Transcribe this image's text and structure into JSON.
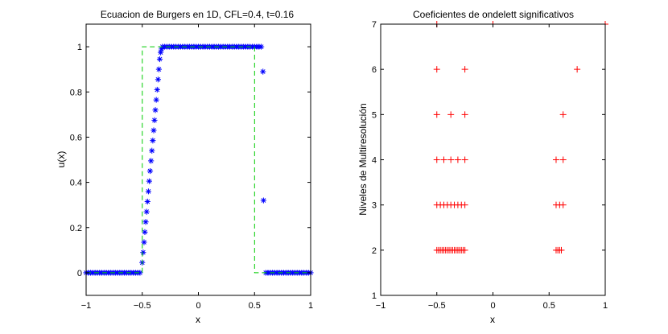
{
  "chart_data": [
    {
      "type": "scatter",
      "title": "Ecuacion de Burgers en 1D, CFL=0.4, t=0.16",
      "xlabel": "x",
      "ylabel": "u(x)",
      "xlim": [
        -1,
        1
      ],
      "ylim": [
        -0.1,
        1.1
      ],
      "xticks": [
        "−1",
        "−0.5",
        "0",
        "0.5",
        "1"
      ],
      "xtick_values": [
        -1,
        -0.5,
        0,
        0.5,
        1
      ],
      "yticks": [
        "0",
        "0.2",
        "0.4",
        "0.6",
        "0.8",
        "1"
      ],
      "ytick_values": [
        0,
        0.2,
        0.4,
        0.6,
        0.8,
        1
      ],
      "grid": false,
      "series": [
        {
          "marker": "asterisk",
          "color": "#0000ff",
          "points": [
            [
              -1.0,
              0
            ],
            [
              -0.98,
              0
            ],
            [
              -0.96,
              0
            ],
            [
              -0.94,
              0
            ],
            [
              -0.92,
              0
            ],
            [
              -0.9,
              0
            ],
            [
              -0.88,
              0
            ],
            [
              -0.86,
              0
            ],
            [
              -0.84,
              0
            ],
            [
              -0.82,
              0
            ],
            [
              -0.8,
              0
            ],
            [
              -0.78,
              0
            ],
            [
              -0.76,
              0
            ],
            [
              -0.74,
              0
            ],
            [
              -0.72,
              0
            ],
            [
              -0.7,
              0
            ],
            [
              -0.68,
              0
            ],
            [
              -0.66,
              0
            ],
            [
              -0.64,
              0
            ],
            [
              -0.62,
              0
            ],
            [
              -0.6,
              0
            ],
            [
              -0.58,
              0
            ],
            [
              -0.56,
              0
            ],
            [
              -0.54,
              0
            ],
            [
              -0.52,
              0
            ],
            [
              -0.5,
              0.045
            ],
            [
              -0.492,
              0.09
            ],
            [
              -0.484,
              0.135
            ],
            [
              -0.477,
              0.18
            ],
            [
              -0.469,
              0.225
            ],
            [
              -0.461,
              0.27
            ],
            [
              -0.453,
              0.315
            ],
            [
              -0.445,
              0.36
            ],
            [
              -0.438,
              0.405
            ],
            [
              -0.43,
              0.45
            ],
            [
              -0.422,
              0.495
            ],
            [
              -0.414,
              0.54
            ],
            [
              -0.406,
              0.585
            ],
            [
              -0.398,
              0.63
            ],
            [
              -0.391,
              0.675
            ],
            [
              -0.383,
              0.72
            ],
            [
              -0.375,
              0.765
            ],
            [
              -0.367,
              0.81
            ],
            [
              -0.359,
              0.855
            ],
            [
              -0.352,
              0.9
            ],
            [
              -0.344,
              0.945
            ],
            [
              -0.336,
              0.975
            ],
            [
              -0.328,
              0.99
            ],
            [
              -0.32,
              1.0
            ],
            [
              -0.3,
              1
            ],
            [
              -0.28,
              1
            ],
            [
              -0.26,
              1
            ],
            [
              -0.24,
              1
            ],
            [
              -0.22,
              1
            ],
            [
              -0.2,
              1
            ],
            [
              -0.18,
              1
            ],
            [
              -0.16,
              1
            ],
            [
              -0.14,
              1
            ],
            [
              -0.12,
              1
            ],
            [
              -0.1,
              1
            ],
            [
              -0.08,
              1
            ],
            [
              -0.06,
              1
            ],
            [
              -0.04,
              1
            ],
            [
              -0.02,
              1
            ],
            [
              0.0,
              1
            ],
            [
              0.02,
              1
            ],
            [
              0.04,
              1
            ],
            [
              0.06,
              1
            ],
            [
              0.08,
              1
            ],
            [
              0.1,
              1
            ],
            [
              0.12,
              1
            ],
            [
              0.14,
              1
            ],
            [
              0.16,
              1
            ],
            [
              0.18,
              1
            ],
            [
              0.2,
              1
            ],
            [
              0.22,
              1
            ],
            [
              0.24,
              1
            ],
            [
              0.26,
              1
            ],
            [
              0.28,
              1
            ],
            [
              0.3,
              1
            ],
            [
              0.32,
              1
            ],
            [
              0.34,
              1
            ],
            [
              0.36,
              1
            ],
            [
              0.38,
              1
            ],
            [
              0.4,
              1
            ],
            [
              0.42,
              1
            ],
            [
              0.44,
              1
            ],
            [
              0.46,
              1
            ],
            [
              0.48,
              1
            ],
            [
              0.5,
              1
            ],
            [
              0.52,
              1
            ],
            [
              0.54,
              1
            ],
            [
              0.56,
              1.0
            ],
            [
              0.575,
              0.89
            ],
            [
              0.58,
              0.32
            ],
            [
              0.6,
              0
            ],
            [
              0.62,
              0
            ],
            [
              0.64,
              0
            ],
            [
              0.66,
              0
            ],
            [
              0.68,
              0
            ],
            [
              0.7,
              0
            ],
            [
              0.72,
              0
            ],
            [
              0.74,
              0
            ],
            [
              0.76,
              0
            ],
            [
              0.78,
              0
            ],
            [
              0.8,
              0
            ],
            [
              0.82,
              0
            ],
            [
              0.84,
              0
            ],
            [
              0.86,
              0
            ],
            [
              0.88,
              0
            ],
            [
              0.9,
              0
            ],
            [
              0.92,
              0
            ],
            [
              0.94,
              0
            ],
            [
              0.96,
              0
            ],
            [
              0.98,
              0
            ],
            [
              1.0,
              0
            ]
          ]
        },
        {
          "marker": "dashed-line",
          "color": "#00cc00",
          "points": [
            [
              -1,
              0
            ],
            [
              -0.5,
              0
            ],
            [
              -0.5,
              1
            ],
            [
              0.5,
              1
            ],
            [
              0.5,
              0
            ],
            [
              1,
              0
            ]
          ]
        }
      ]
    },
    {
      "type": "scatter",
      "title": "Coeficientes de ondelett significativos",
      "xlabel": "x",
      "ylabel": "Niveles de Multiresolución",
      "xlim": [
        -1,
        1
      ],
      "ylim": [
        1,
        7
      ],
      "xticks": [
        "−1",
        "−0.5",
        "0",
        "0.5",
        "1"
      ],
      "xtick_values": [
        -1,
        -0.5,
        0,
        0.5,
        1
      ],
      "yticks": [
        "1",
        "2",
        "3",
        "4",
        "5",
        "6",
        "7"
      ],
      "ytick_values": [
        1,
        2,
        3,
        4,
        5,
        6,
        7
      ],
      "grid": false,
      "series": [
        {
          "marker": "plus",
          "color": "#ff0000",
          "points": [
            [
              -0.5,
              7
            ],
            [
              0,
              7
            ],
            [
              1,
              7
            ],
            [
              -0.5,
              6
            ],
            [
              -0.25,
              6
            ],
            [
              0.75,
              6
            ],
            [
              -0.5,
              5
            ],
            [
              -0.375,
              5
            ],
            [
              -0.25,
              5
            ],
            [
              0.625,
              5
            ],
            [
              -0.5,
              4
            ],
            [
              -0.4375,
              4
            ],
            [
              -0.375,
              4
            ],
            [
              -0.3125,
              4
            ],
            [
              -0.25,
              4
            ],
            [
              0.5625,
              4
            ],
            [
              0.625,
              4
            ],
            [
              -0.5,
              3
            ],
            [
              -0.46875,
              3
            ],
            [
              -0.4375,
              3
            ],
            [
              -0.40625,
              3
            ],
            [
              -0.375,
              3
            ],
            [
              -0.34375,
              3
            ],
            [
              -0.3125,
              3
            ],
            [
              -0.28125,
              3
            ],
            [
              -0.25,
              3
            ],
            [
              0.5625,
              3
            ],
            [
              0.59375,
              3
            ],
            [
              0.625,
              3
            ],
            [
              -0.5,
              2
            ],
            [
              -0.484375,
              2
            ],
            [
              -0.46875,
              2
            ],
            [
              -0.453125,
              2
            ],
            [
              -0.4375,
              2
            ],
            [
              -0.421875,
              2
            ],
            [
              -0.40625,
              2
            ],
            [
              -0.390625,
              2
            ],
            [
              -0.375,
              2
            ],
            [
              -0.359375,
              2
            ],
            [
              -0.34375,
              2
            ],
            [
              -0.328125,
              2
            ],
            [
              -0.3125,
              2
            ],
            [
              -0.296875,
              2
            ],
            [
              -0.28125,
              2
            ],
            [
              -0.265625,
              2
            ],
            [
              -0.25,
              2
            ],
            [
              0.5625,
              2
            ],
            [
              0.578125,
              2
            ],
            [
              0.59375,
              2
            ],
            [
              0.609375,
              2
            ]
          ]
        }
      ]
    }
  ]
}
